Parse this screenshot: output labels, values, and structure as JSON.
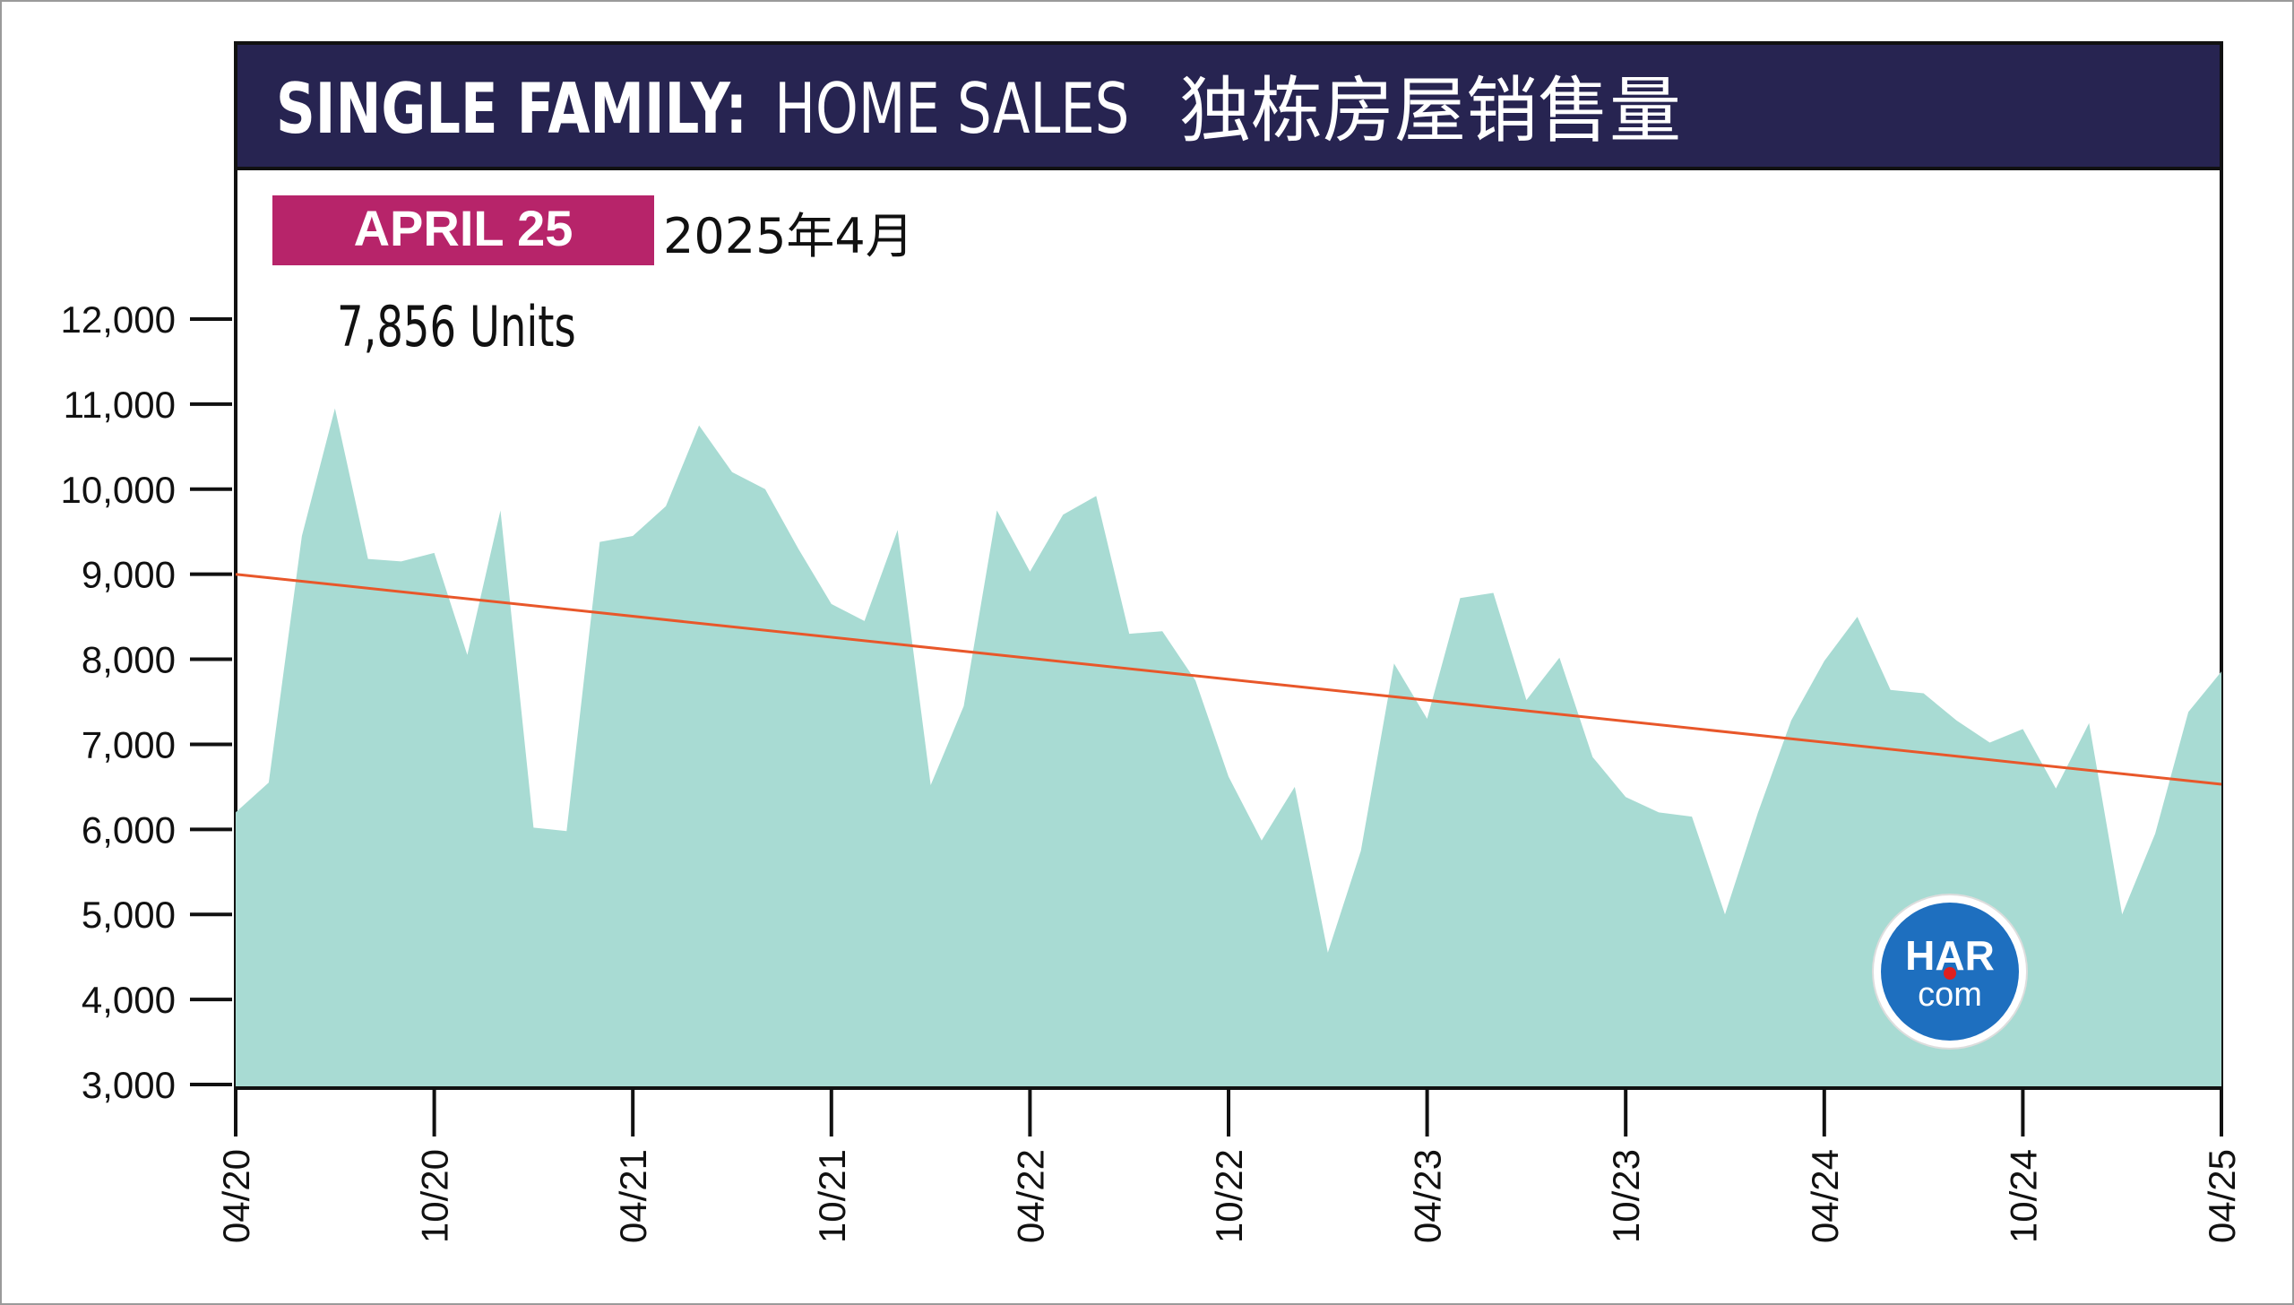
{
  "header": {
    "title_bold": "SINGLE FAMILY:",
    "title_regular": "HOME SALES",
    "title_chinese": "独栋房屋销售量"
  },
  "badge": {
    "label": "APRIL 25",
    "chinese_date": "2025年4月"
  },
  "callout": {
    "text": "7,856 Units"
  },
  "logo": {
    "line1": "HAR",
    "line2": "com"
  },
  "colors": {
    "header_bg": "#272451",
    "badge_bg": "#B7246A",
    "area_fill": "#A8DBD3",
    "trend_line": "#E8572A",
    "logo_blue": "#1E6FBF",
    "logo_dot": "#E02020"
  },
  "chart_data": {
    "type": "area",
    "x_tick_labels": [
      "04/20",
      "10/20",
      "04/21",
      "10/21",
      "04/22",
      "10/22",
      "04/23",
      "10/23",
      "04/24",
      "10/24",
      "04/25"
    ],
    "y_tick_labels": [
      "3,000",
      "4,000",
      "5,000",
      "6,000",
      "7,000",
      "8,000",
      "9,000",
      "10,000",
      "11,000",
      "12,000"
    ],
    "ylim": [
      3000,
      12000
    ],
    "x_months": [
      "2020-04",
      "2020-05",
      "2020-06",
      "2020-07",
      "2020-08",
      "2020-09",
      "2020-10",
      "2020-11",
      "2020-12",
      "2021-01",
      "2021-02",
      "2021-03",
      "2021-04",
      "2021-05",
      "2021-06",
      "2021-07",
      "2021-08",
      "2021-09",
      "2021-10",
      "2021-11",
      "2021-12",
      "2022-01",
      "2022-02",
      "2022-03",
      "2022-04",
      "2022-05",
      "2022-06",
      "2022-07",
      "2022-08",
      "2022-09",
      "2022-10",
      "2022-11",
      "2022-12",
      "2023-01",
      "2023-02",
      "2023-03",
      "2023-04",
      "2023-05",
      "2023-06",
      "2023-07",
      "2023-08",
      "2023-09",
      "2023-10",
      "2023-11",
      "2023-12",
      "2024-01",
      "2024-02",
      "2024-03",
      "2024-04",
      "2024-05",
      "2024-06",
      "2024-07",
      "2024-08",
      "2024-09",
      "2024-10",
      "2024-11",
      "2024-12",
      "2025-01",
      "2025-02",
      "2025-03",
      "2025-04"
    ],
    "series": [
      {
        "values": [
          6200,
          6550,
          9450,
          10950,
          9180,
          9150,
          9250,
          8050,
          9750,
          6020,
          5980,
          9380,
          9450,
          9800,
          10750,
          10200,
          10000,
          9300,
          8650,
          8450,
          9520,
          6520,
          7450,
          9750,
          9030,
          9700,
          9920,
          8300,
          8330,
          7750,
          6620,
          5870,
          6500,
          4550,
          5750,
          7950,
          7300,
          8720,
          8780,
          7520,
          8020,
          6850,
          6380,
          6200,
          6150,
          5000,
          6200,
          7280,
          7980,
          8500,
          7640,
          7600,
          7280,
          7020,
          7180,
          6480,
          7250,
          5000,
          5950,
          7380,
          7856
        ]
      }
    ],
    "trend_line": {
      "start": 9000,
      "end": 6530
    },
    "grid": false,
    "legend": "none"
  }
}
